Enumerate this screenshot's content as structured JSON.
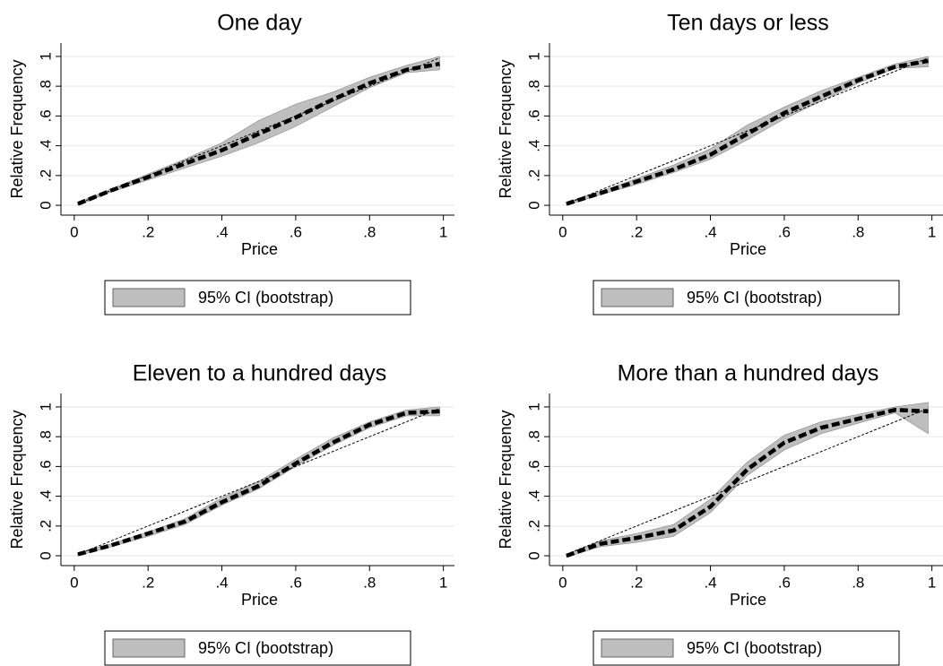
{
  "chart_data": [
    {
      "type": "line",
      "title": "One day",
      "xlabel": "Price",
      "ylabel": "Relative Frequency",
      "xlim": [
        -0.036,
        1.03
      ],
      "ylim": [
        -0.066,
        1.09
      ],
      "grid": true,
      "xticks": [
        0,
        {
          "value": 0.2,
          "label": ".2"
        },
        {
          "value": 0.4,
          "label": ".4"
        },
        {
          "value": 0.6,
          "label": ".6"
        },
        {
          "value": 0.8,
          "label": ".8"
        },
        1
      ],
      "yticks": [
        0,
        {
          "value": 0.2,
          "label": ".2"
        },
        {
          "value": 0.4,
          "label": ".4"
        },
        {
          "value": 0.6,
          "label": ".6"
        },
        {
          "value": 0.8,
          "label": ".8"
        },
        1
      ],
      "x": [
        0.01,
        0.1,
        0.2,
        0.3,
        0.4,
        0.5,
        0.6,
        0.7,
        0.8,
        0.9,
        0.99
      ],
      "series": [
        {
          "name": "95% CI (bootstrap)",
          "color": "#bebebe",
          "lower": [
            0,
            0.09,
            0.17,
            0.25,
            0.33,
            0.42,
            0.53,
            0.66,
            0.79,
            0.89,
            0.91
          ],
          "upper": [
            0.02,
            0.11,
            0.21,
            0.31,
            0.42,
            0.57,
            0.68,
            0.76,
            0.86,
            0.94,
            1.0
          ]
        },
        {
          "color": "#000000",
          "style": "dashed",
          "values": [
            0.01,
            0.1,
            0.19,
            0.28,
            0.37,
            0.48,
            0.59,
            0.71,
            0.82,
            0.91,
            0.95
          ]
        },
        {
          "color": "#000000",
          "style": "dotted",
          "values": [
            0.01,
            0.1,
            0.2,
            0.3,
            0.4,
            0.5,
            0.6,
            0.7,
            0.8,
            0.9,
            0.99
          ]
        }
      ]
    },
    {
      "type": "line",
      "title": "Ten days or less",
      "xlabel": "Price",
      "ylabel": "Relative Frequency",
      "xlim": [
        -0.036,
        1.03
      ],
      "ylim": [
        -0.066,
        1.09
      ],
      "grid": true,
      "xticks": [
        0,
        {
          "value": 0.2,
          "label": ".2"
        },
        {
          "value": 0.4,
          "label": ".4"
        },
        {
          "value": 0.6,
          "label": ".6"
        },
        {
          "value": 0.8,
          "label": ".8"
        },
        1
      ],
      "yticks": [
        0,
        {
          "value": 0.2,
          "label": ".2"
        },
        {
          "value": 0.4,
          "label": ".4"
        },
        {
          "value": 0.6,
          "label": ".6"
        },
        {
          "value": 0.8,
          "label": ".8"
        },
        1
      ],
      "x": [
        0.01,
        0.1,
        0.2,
        0.3,
        0.4,
        0.5,
        0.6,
        0.7,
        0.8,
        0.9,
        0.99
      ],
      "series": [
        {
          "name": "95% CI (bootstrap)",
          "color": "#bebebe",
          "lower": [
            0,
            0.07,
            0.14,
            0.22,
            0.31,
            0.44,
            0.58,
            0.7,
            0.82,
            0.92,
            0.93
          ],
          "upper": [
            0.02,
            0.09,
            0.18,
            0.27,
            0.38,
            0.54,
            0.66,
            0.77,
            0.86,
            0.95,
            1.0
          ]
        },
        {
          "color": "#000000",
          "style": "dashed",
          "values": [
            0.01,
            0.08,
            0.16,
            0.24,
            0.34,
            0.48,
            0.62,
            0.73,
            0.84,
            0.93,
            0.97
          ]
        },
        {
          "color": "#000000",
          "style": "dotted",
          "values": [
            0.01,
            0.1,
            0.2,
            0.3,
            0.4,
            0.5,
            0.6,
            0.7,
            0.8,
            0.9,
            0.99
          ]
        }
      ]
    },
    {
      "type": "line",
      "title": "Eleven to a hundred days",
      "xlabel": "Price",
      "ylabel": "Relative Frequency",
      "xlim": [
        -0.036,
        1.03
      ],
      "ylim": [
        -0.066,
        1.09
      ],
      "grid": true,
      "xticks": [
        0,
        {
          "value": 0.2,
          "label": ".2"
        },
        {
          "value": 0.4,
          "label": ".4"
        },
        {
          "value": 0.6,
          "label": ".6"
        },
        {
          "value": 0.8,
          "label": ".8"
        },
        1
      ],
      "yticks": [
        0,
        {
          "value": 0.2,
          "label": ".2"
        },
        {
          "value": 0.4,
          "label": ".4"
        },
        {
          "value": 0.6,
          "label": ".6"
        },
        {
          "value": 0.8,
          "label": ".8"
        },
        1
      ],
      "x": [
        0.01,
        0.1,
        0.2,
        0.3,
        0.4,
        0.5,
        0.6,
        0.7,
        0.8,
        0.9,
        0.99
      ],
      "series": [
        {
          "name": "95% CI (bootstrap)",
          "color": "#bebebe",
          "lower": [
            0,
            0.06,
            0.13,
            0.21,
            0.34,
            0.45,
            0.6,
            0.74,
            0.86,
            0.94,
            0.94
          ],
          "upper": [
            0.02,
            0.08,
            0.16,
            0.25,
            0.39,
            0.5,
            0.65,
            0.79,
            0.9,
            0.98,
            1.0
          ]
        },
        {
          "color": "#000000",
          "style": "dashed",
          "values": [
            0.01,
            0.07,
            0.15,
            0.23,
            0.36,
            0.47,
            0.62,
            0.76,
            0.88,
            0.96,
            0.97
          ]
        },
        {
          "color": "#000000",
          "style": "dotted",
          "values": [
            0.01,
            0.1,
            0.2,
            0.3,
            0.4,
            0.5,
            0.6,
            0.7,
            0.8,
            0.9,
            0.99
          ]
        }
      ]
    },
    {
      "type": "line",
      "title": "More than a hundred days",
      "xlabel": "Price",
      "ylabel": "Relative Frequency",
      "xlim": [
        -0.036,
        1.03
      ],
      "ylim": [
        -0.066,
        1.09
      ],
      "grid": true,
      "xticks": [
        0,
        {
          "value": 0.2,
          "label": ".2"
        },
        {
          "value": 0.4,
          "label": ".4"
        },
        {
          "value": 0.6,
          "label": ".6"
        },
        {
          "value": 0.8,
          "label": ".8"
        },
        1
      ],
      "yticks": [
        0,
        {
          "value": 0.2,
          "label": ".2"
        },
        {
          "value": 0.4,
          "label": ".4"
        },
        {
          "value": 0.6,
          "label": ".6"
        },
        {
          "value": 0.8,
          "label": ".8"
        },
        1
      ],
      "x": [
        0.01,
        0.1,
        0.2,
        0.3,
        0.4,
        0.5,
        0.6,
        0.7,
        0.8,
        0.9,
        0.99
      ],
      "series": [
        {
          "name": "95% CI (bootstrap)",
          "color": "#bebebe",
          "lower": [
            -0.01,
            0.06,
            0.09,
            0.13,
            0.29,
            0.54,
            0.71,
            0.82,
            0.89,
            0.96,
            0.82
          ],
          "upper": [
            0.01,
            0.1,
            0.15,
            0.21,
            0.38,
            0.63,
            0.81,
            0.9,
            0.95,
            1.0,
            1.03
          ]
        },
        {
          "color": "#000000",
          "style": "dashed",
          "values": [
            0,
            0.08,
            0.12,
            0.17,
            0.33,
            0.58,
            0.76,
            0.86,
            0.92,
            0.98,
            0.97
          ]
        },
        {
          "color": "#000000",
          "style": "dotted",
          "values": [
            0.01,
            0.1,
            0.2,
            0.3,
            0.4,
            0.5,
            0.6,
            0.7,
            0.8,
            0.9,
            0.99
          ]
        }
      ]
    }
  ]
}
